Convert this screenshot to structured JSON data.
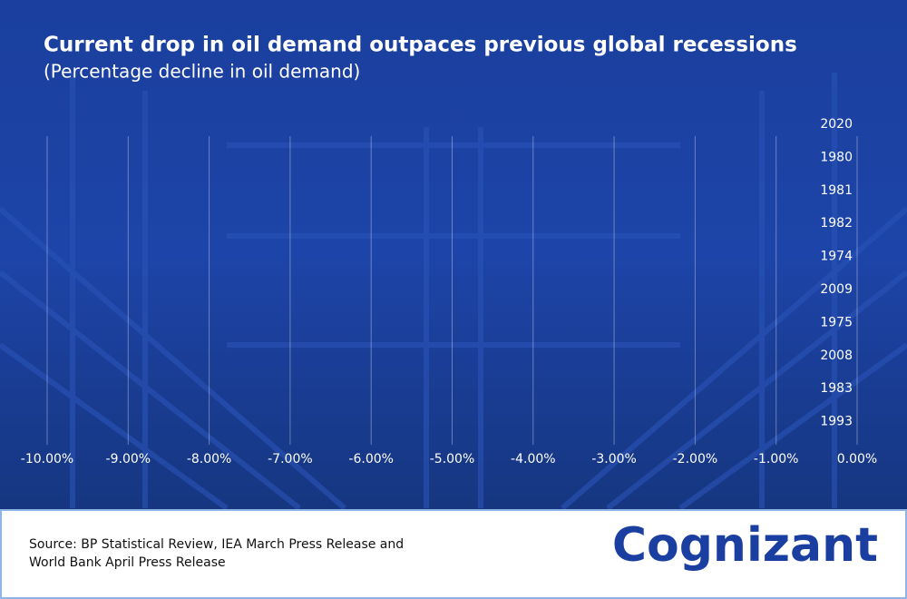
{
  "chart_data": {
    "type": "bar",
    "orientation": "horizontal",
    "title": "Current drop in oil demand outpaces previous global recessions",
    "subtitle": "(Percentage decline in oil demand)",
    "categories": [
      "2020",
      "1980",
      "1981",
      "1982",
      "1974",
      "2009",
      "1975",
      "2008",
      "1983",
      "1993"
    ],
    "xlim": [
      -10,
      0
    ],
    "xticks": [
      {
        "value": -10,
        "label": "-10.00%"
      },
      {
        "value": -9,
        "label": "-9.00%"
      },
      {
        "value": -8,
        "label": "-8.00%"
      },
      {
        "value": -7,
        "label": "-7.00%"
      },
      {
        "value": -6,
        "label": "-6.00%"
      },
      {
        "value": -5,
        "label": "-5.00%"
      },
      {
        "value": -4,
        "label": "-4.00%"
      },
      {
        "value": -3,
        "label": "-3.00%"
      },
      {
        "value": -2,
        "label": "-2.00%"
      },
      {
        "value": -1,
        "label": "-1.00%"
      },
      {
        "value": 0,
        "label": "0.00%"
      }
    ],
    "grid": true
  },
  "footer": {
    "source": [
      "Source: BP Statistical Review, IEA March Press Release and",
      "World Bank April Press Release"
    ],
    "logo": "Cognizant"
  }
}
